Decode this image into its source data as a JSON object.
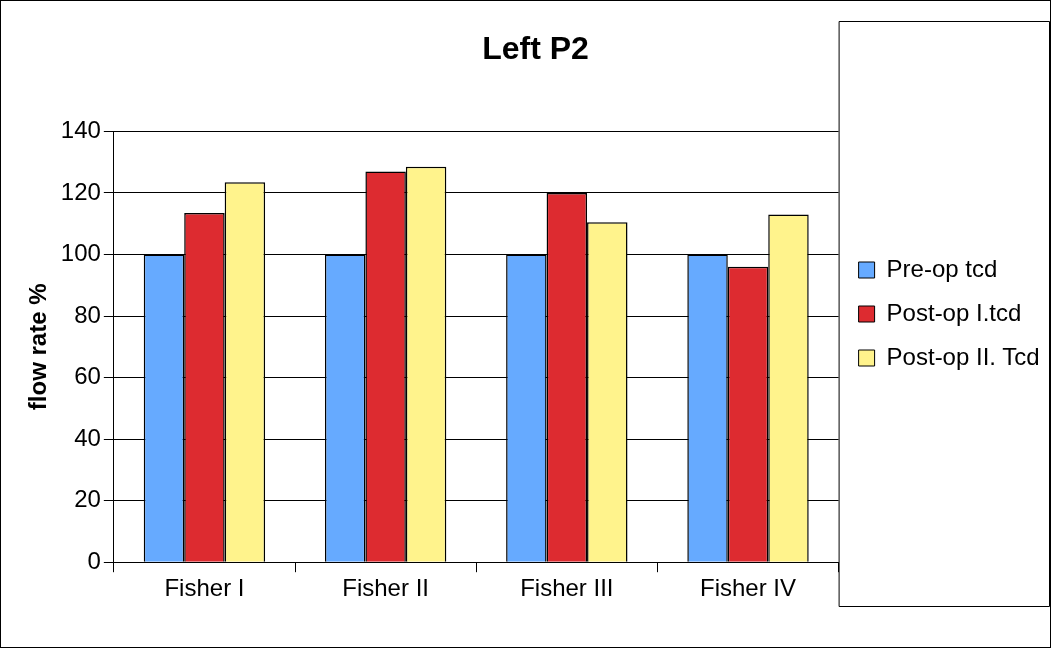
{
  "chart_data": {
    "type": "bar",
    "title": "Left P2",
    "ylabel": "flow rate %",
    "categories": [
      "Fisher I",
      "Fisher II",
      "Fisher III",
      "Fisher IV"
    ],
    "series": [
      {
        "name": "Pre-op tcd",
        "color": "#66aaff",
        "values": [
          100,
          100,
          100,
          100
        ]
      },
      {
        "name": "Post-op I.tcd",
        "color": "#dd2b30",
        "values": [
          113.5,
          127,
          120,
          96
        ]
      },
      {
        "name": "Post-op II. Tcd",
        "color": "#fff38c",
        "values": [
          123.5,
          128.5,
          110.5,
          113
        ]
      }
    ],
    "ylim": [
      0,
      140
    ],
    "yticks": [
      0,
      20,
      40,
      60,
      80,
      100,
      120,
      140
    ],
    "grid": "y",
    "legend": "right"
  }
}
